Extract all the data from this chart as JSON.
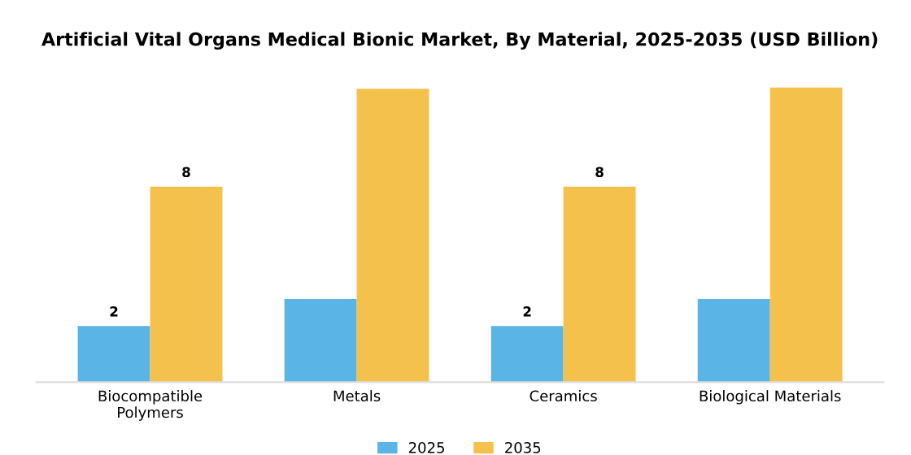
{
  "chart_data": {
    "type": "bar",
    "title": "Artificial Vital Organs Medical Bionic Market, By Material, 2025-2035 (USD Billion)",
    "categories": [
      "Biocompatible\nPolymers",
      "Metals",
      "Ceramics",
      "Biological Materials"
    ],
    "series": [
      {
        "name": "2025",
        "color": "#5ab4e5",
        "values": [
          2.3,
          3.4,
          2.3,
          3.4
        ],
        "value_labels": [
          "2",
          null,
          "2",
          null
        ]
      },
      {
        "name": "2035",
        "color": "#f5c14d",
        "values": [
          8,
          12,
          8,
          12.05
        ],
        "value_labels": [
          "8",
          null,
          "8",
          null
        ]
      }
    ],
    "legend": "bottom",
    "grid": false,
    "tick_labels": "x"
  }
}
